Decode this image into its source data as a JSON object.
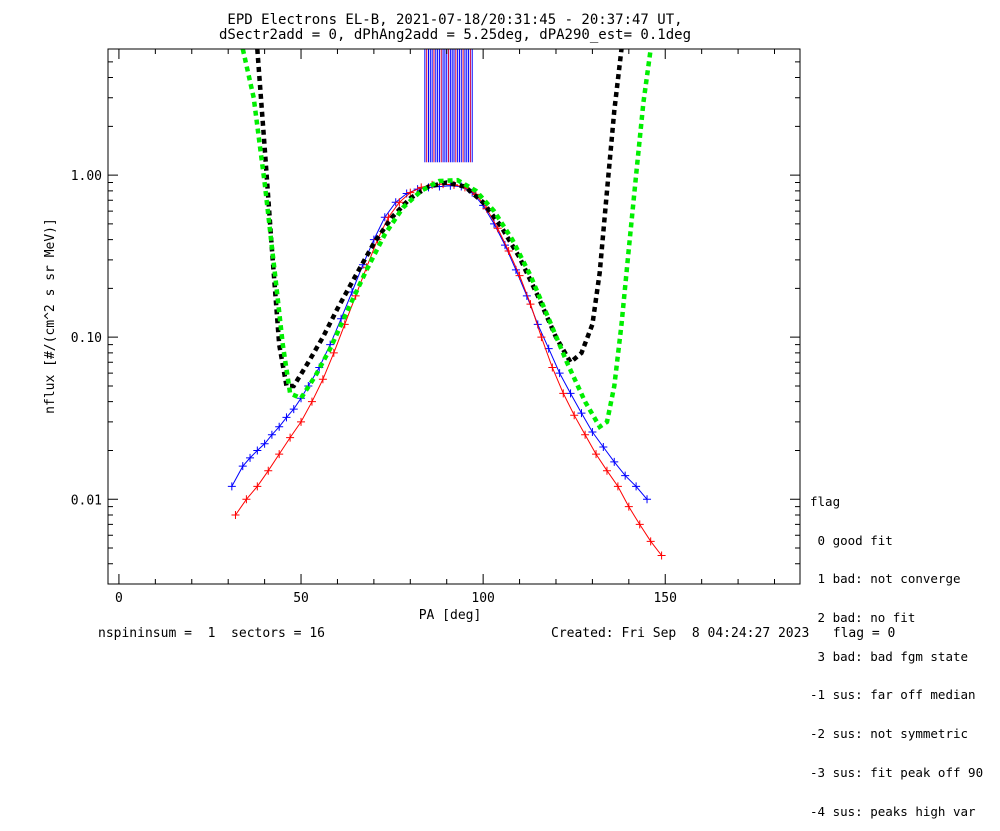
{
  "chart_data": {
    "type": "line",
    "title": "EPD Electrons EL-B, 2021-07-18/20:31:45 - 20:37:47 UT,",
    "subtitle": "dSectr2add = 0, dPhAng2add = 5.25deg, dPA290_est=   0.1deg",
    "xlabel": "PA [deg]",
    "ylabel": "nflux [#/(cm^2 s sr MeV)]",
    "xlim": [
      -3,
      187
    ],
    "ylim": [
      0.003,
      6.0
    ],
    "yscale": "log",
    "xticks": [
      0,
      50,
      100,
      150
    ],
    "xtick_labels": [
      "0",
      "50",
      "100",
      "150"
    ],
    "yticks": [
      0.01,
      0.1,
      1.0
    ],
    "ytick_labels": [
      "0.01",
      "0.10",
      "1.00"
    ],
    "grid": false,
    "series": [
      {
        "color": "#0000ff",
        "marker": "+",
        "style": "solid",
        "x": [
          31,
          34,
          36,
          38,
          40,
          42,
          44,
          46,
          48,
          50,
          52,
          55,
          58,
          61,
          64,
          67,
          70,
          73,
          76,
          79,
          82,
          85,
          88,
          91,
          94,
          97,
          100,
          103,
          106,
          109,
          112,
          115,
          118,
          121,
          124,
          127,
          130,
          133,
          136,
          139,
          142,
          145
        ],
        "y": [
          0.012,
          0.016,
          0.018,
          0.02,
          0.022,
          0.025,
          0.028,
          0.032,
          0.036,
          0.042,
          0.05,
          0.065,
          0.09,
          0.13,
          0.19,
          0.28,
          0.4,
          0.55,
          0.68,
          0.77,
          0.82,
          0.84,
          0.85,
          0.86,
          0.85,
          0.78,
          0.65,
          0.5,
          0.37,
          0.26,
          0.18,
          0.12,
          0.085,
          0.06,
          0.045,
          0.034,
          0.026,
          0.021,
          0.017,
          0.014,
          0.012,
          0.01
        ]
      },
      {
        "color": "#ff0000",
        "marker": "+",
        "style": "solid",
        "x": [
          32,
          35,
          38,
          41,
          44,
          47,
          50,
          53,
          56,
          59,
          62,
          65,
          68,
          71,
          74,
          77,
          80,
          83,
          86,
          89,
          92,
          95,
          98,
          101,
          104,
          107,
          110,
          113,
          116,
          119,
          122,
          125,
          128,
          131,
          134,
          137,
          140,
          143,
          146,
          149
        ],
        "y": [
          0.008,
          0.01,
          0.012,
          0.015,
          0.019,
          0.024,
          0.03,
          0.04,
          0.055,
          0.08,
          0.12,
          0.18,
          0.27,
          0.4,
          0.55,
          0.68,
          0.78,
          0.84,
          0.87,
          0.88,
          0.87,
          0.84,
          0.76,
          0.62,
          0.47,
          0.34,
          0.24,
          0.16,
          0.1,
          0.065,
          0.045,
          0.033,
          0.025,
          0.019,
          0.015,
          0.012,
          0.009,
          0.007,
          0.0055,
          0.0045
        ]
      },
      {
        "color": "#000000",
        "marker": "",
        "style": "dashed",
        "x": [
          38,
          40,
          42,
          44,
          46,
          48,
          52,
          56,
          60,
          65,
          70,
          75,
          80,
          85,
          90,
          95,
          100,
          105,
          110,
          115,
          120,
          124,
          127,
          130,
          132,
          134,
          136,
          138
        ],
        "y": [
          6.0,
          1.5,
          0.35,
          0.09,
          0.05,
          0.05,
          0.07,
          0.1,
          0.15,
          0.24,
          0.38,
          0.55,
          0.72,
          0.85,
          0.9,
          0.85,
          0.68,
          0.48,
          0.31,
          0.18,
          0.1,
          0.07,
          0.08,
          0.12,
          0.25,
          0.8,
          2.5,
          6.0
        ]
      },
      {
        "color": "#00ee00",
        "marker": "",
        "style": "dashed",
        "x": [
          34,
          37,
          40,
          43,
          45,
          47,
          50,
          54,
          58,
          63,
          68,
          73,
          78,
          83,
          88,
          93,
          98,
          103,
          108,
          113,
          118,
          123,
          128,
          132,
          134,
          136,
          138,
          140,
          142,
          144,
          146
        ],
        "y": [
          6.0,
          3.0,
          0.9,
          0.23,
          0.09,
          0.045,
          0.042,
          0.058,
          0.085,
          0.15,
          0.26,
          0.43,
          0.63,
          0.8,
          0.92,
          0.93,
          0.8,
          0.6,
          0.4,
          0.24,
          0.13,
          0.07,
          0.04,
          0.028,
          0.03,
          0.05,
          0.12,
          0.35,
          1.0,
          2.8,
          6.0
        ]
      }
    ],
    "vlines": {
      "color_a": "#0000ff",
      "color_b": "#cc0044",
      "x": [
        84,
        84.5,
        85,
        85.5,
        86,
        86.5,
        87,
        87.5,
        88,
        88.5,
        89,
        89.5,
        90,
        90.5,
        91,
        91.5,
        92,
        92.5,
        93,
        93.5,
        94,
        94.5,
        95,
        95.5,
        96,
        96.5,
        97
      ],
      "y_low": 1.2
    }
  },
  "legend": {
    "title": "flag",
    "items": [
      " 0 good fit",
      " 1 bad: not converge",
      " 2 bad: no fit",
      " 3 bad: bad fgm state",
      "-1 sus: far off median",
      "-2 sus: not symmetric",
      "-3 sus: fit peak off 90",
      "-4 sus: peaks high var"
    ]
  },
  "footer": {
    "left": "nspininsum =  1  sectors = 16",
    "right": "Created: Fri Sep  8 04:24:27 2023   flag = 0"
  },
  "colors": {
    "blue": "#0000ff",
    "red": "#ff0000",
    "black": "#000000",
    "green": "#00ee00"
  }
}
